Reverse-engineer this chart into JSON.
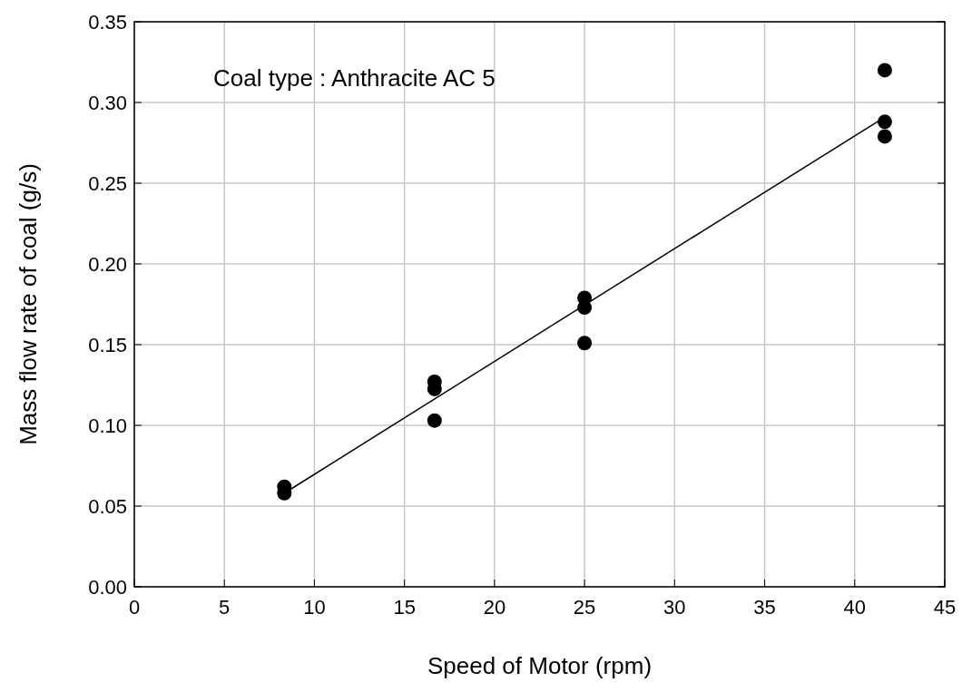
{
  "chart_data": {
    "type": "scatter",
    "xlabel": "Speed of Motor (rpm)",
    "ylabel": "Mass flow rate of coal (g/s)",
    "annotations": [
      "Coal type : Anthracite AC 5"
    ],
    "xlim": [
      0,
      45
    ],
    "xticks": [
      0,
      5,
      10,
      15,
      20,
      25,
      30,
      35,
      40,
      45
    ],
    "ylim": [
      0,
      0.35
    ],
    "yticks": [
      {
        "value": 0,
        "label": "0.00"
      },
      {
        "value": 0.05,
        "label": "0.05"
      },
      {
        "value": 0.1,
        "label": "0.10"
      },
      {
        "value": 0.15,
        "label": "0.15"
      },
      {
        "value": 0.2,
        "label": "0.20"
      },
      {
        "value": 0.25,
        "label": "0.25"
      },
      {
        "value": 0.3,
        "label": "0.30"
      },
      {
        "value": 0.35,
        "label": "0.35"
      }
    ],
    "grid": true,
    "series": [
      {
        "marker": "circle",
        "color": "#000000",
        "x": [
          8.33,
          8.33,
          16.67,
          16.67,
          16.67,
          25,
          25,
          25,
          41.67,
          41.67,
          41.67
        ],
        "values": [
          0.062,
          0.058,
          0.127,
          0.1225,
          0.103,
          0.179,
          0.173,
          0.151,
          0.32,
          0.288,
          0.279
        ]
      },
      {
        "type": "line",
        "color": "#000000",
        "x": [
          8.33,
          41.67
        ],
        "values": [
          0.058,
          0.291
        ]
      }
    ]
  }
}
